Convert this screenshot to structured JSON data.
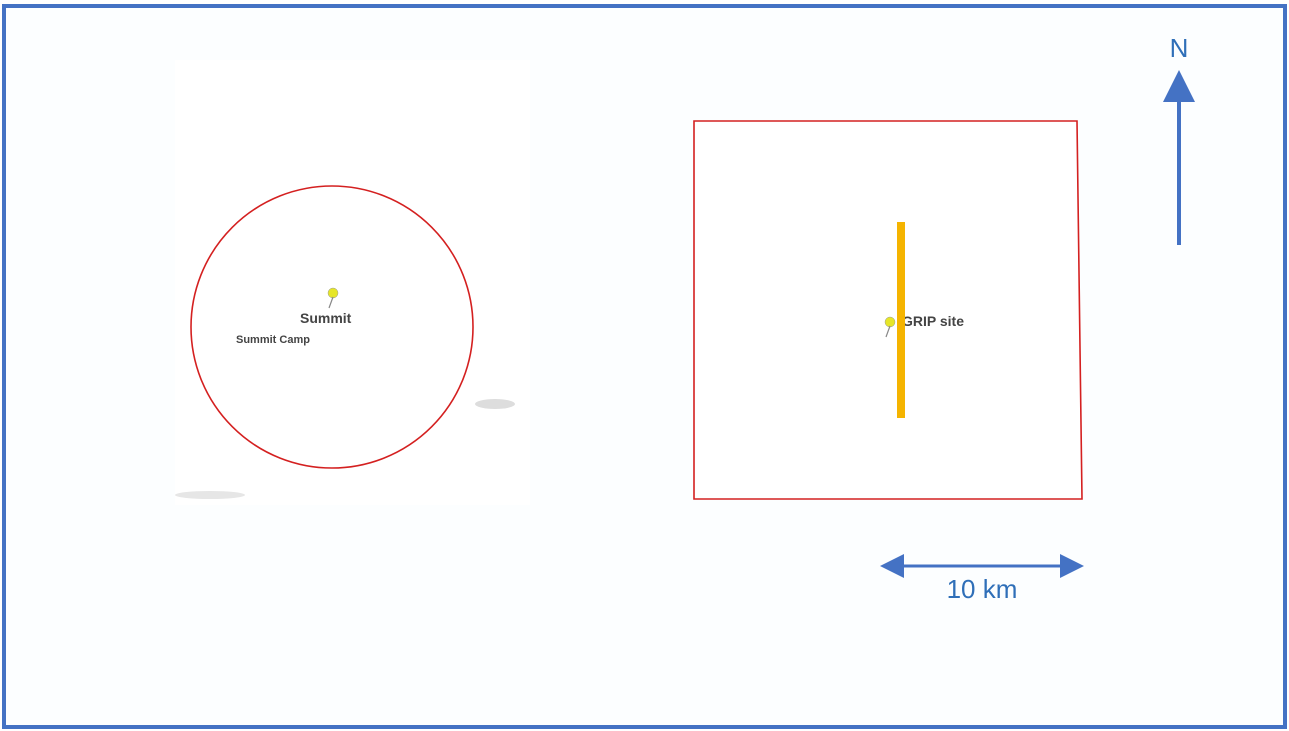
{
  "summit": {
    "label": "Summit",
    "camp_label": "Summit Camp"
  },
  "grip": {
    "label": "GRIP site"
  },
  "compass": {
    "label": "N"
  },
  "scale": {
    "label": "10 km"
  }
}
